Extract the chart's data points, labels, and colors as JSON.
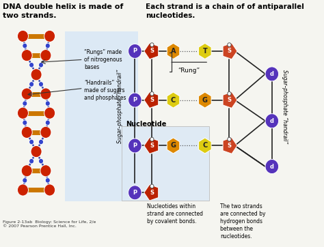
{
  "title_left": "DNA double helix is made of\ntwo strands.",
  "title_right": "Each strand is a chain of of antiparallel\nnucleotides.",
  "caption": "Figure 2-13ab  Biology: Science for Life, 2/e\n© 2007 Pearson Prentice Hall, Inc.",
  "bg_color": "#f5f5f0",
  "left_panel_bg": "#dce9f5",
  "nucleotide_box_bg": "#dce9f5",
  "colors": {
    "P": "#5533bb",
    "S_left": "#bb2200",
    "S_right": "#cc4422",
    "A": "#dd8800",
    "T": "#ddcc11",
    "C": "#ddcc11",
    "G": "#dd8800",
    "d": "#5533bb",
    "helix_ball": "#cc2200",
    "helix_rung": "#cc7700",
    "helix_line": "#3344aa",
    "helix_dot": "#3344cc"
  },
  "rows": [
    {
      "bases": [
        "A",
        "T"
      ],
      "base_colors": [
        "#dd8800",
        "#ddcc11"
      ]
    },
    {
      "bases": [
        "C",
        "G"
      ],
      "base_colors": [
        "#ddcc11",
        "#dd8800"
      ]
    },
    {
      "bases": [
        "G",
        "C"
      ],
      "base_colors": [
        "#dd8800",
        "#ddcc11"
      ]
    }
  ],
  "label_handrail_left": "Sugar–phosphate “handrail”",
  "label_handrail_right": "Sugar–phosphate “handrail”",
  "label_rung": "“Rung”",
  "label_nucleotide": "Nucleotide",
  "left_label1": "“Handrails”\nmade of sugars\nand phosphates",
  "left_label2": "“Rungs” made\nof nitrogenous\nbases",
  "label_covalent": "Nucleotides within\nstrand are connected\nby covalent bonds.",
  "label_hydrogen": "The two strands\nare connected by\nhydrogen bonds\nbetween the\nnucleotides."
}
